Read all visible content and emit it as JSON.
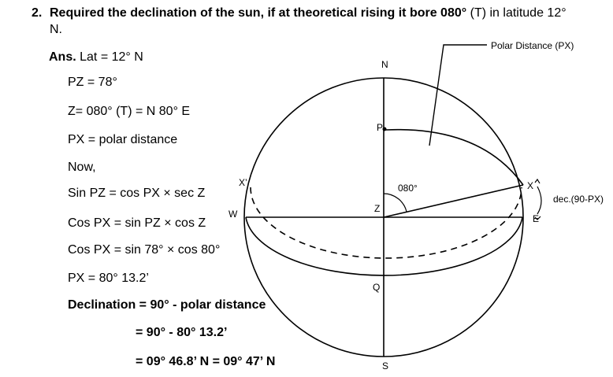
{
  "question": {
    "number": "2.",
    "bold_text": "Required the declination of the sun, if at theoretical rising it bore 080°",
    "normal_text": "(T) in latitude 12°",
    "continuation": "N."
  },
  "answer": {
    "label": "Ans.",
    "lines": [
      "Lat = 12° N",
      "PZ = 78°",
      "Z= 080° (T) = N 80° E",
      "PX = polar distance",
      "Now,",
      "Sin PZ = cos PX × sec Z",
      "Cos PX = sin PZ × cos Z",
      "Cos PX = sin 78° × cos 80°",
      "PX = 80° 13.2’"
    ],
    "result_lines": [
      "Declination = 90° - polar distance",
      "= 90° - 80° 13.2’",
      "= 09° 46.8’ N = 09° 47’ N"
    ]
  },
  "diagram": {
    "labels": {
      "n": "N",
      "s": "S",
      "p": "P",
      "z": "Z",
      "q": "Q",
      "w": "W",
      "e": "E",
      "x": "X",
      "x_prime": "X’",
      "angle": "080°",
      "polar_distance": "Polar Distance (PX)",
      "declination": "dec.(90-PX)"
    }
  }
}
